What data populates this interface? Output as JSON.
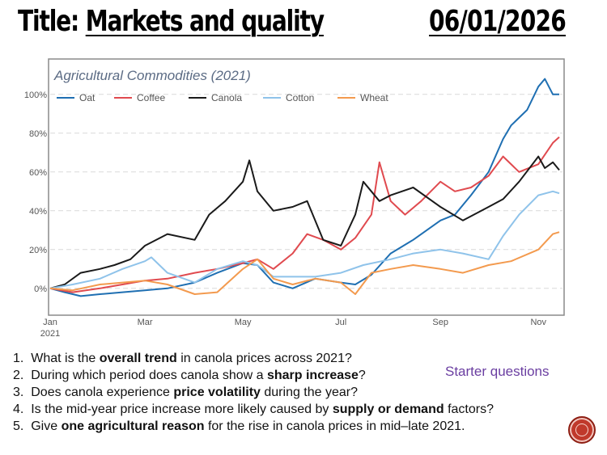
{
  "slide": {
    "title_prefix": "Title: ",
    "title_topic": "Markets and quality",
    "date": "06/01/2026"
  },
  "questions": [
    {
      "num": "1.",
      "parts": [
        {
          "t": "What is the ",
          "b": false
        },
        {
          "t": "overall trend",
          "b": true
        },
        {
          "t": " in canola prices across 2021?",
          "b": false
        }
      ]
    },
    {
      "num": "2.",
      "parts": [
        {
          "t": "During which period does canola show a ",
          "b": false
        },
        {
          "t": "sharp increase",
          "b": true
        },
        {
          "t": "?",
          "b": false
        }
      ]
    },
    {
      "num": "3.",
      "parts": [
        {
          "t": "Does canola experience ",
          "b": false
        },
        {
          "t": "price volatility",
          "b": true
        },
        {
          "t": " during the year?",
          "b": false
        }
      ]
    },
    {
      "num": "4.",
      "parts": [
        {
          "t": "Is the mid-year price increase more likely caused by ",
          "b": false
        },
        {
          "t": "supply or demand",
          "b": true
        },
        {
          "t": " factors?",
          "b": false
        }
      ]
    },
    {
      "num": "5.",
      "parts": [
        {
          "t": "Give ",
          "b": false
        },
        {
          "t": "one agricultural reason",
          "b": true
        },
        {
          "t": " for the rise in canola prices in mid–late 2021.",
          "b": false
        }
      ]
    }
  ],
  "starter_label": "Starter questions",
  "badge_icon": "circle-button-icon",
  "colors": {
    "title_text": "#5b6b84",
    "grid": "#d9d9d9",
    "frame": "#8a8a8a",
    "starter": "#6a3ea1",
    "badge": "#c0392b"
  },
  "chart_data": {
    "type": "line",
    "title": "Agricultural Commodities (2021)",
    "xlabel": "",
    "ylabel": "",
    "x_ticks": [
      {
        "x": "2021-01-01",
        "label": "Jan",
        "sublabel": "2021"
      },
      {
        "x": "2021-03-01",
        "label": "Mar"
      },
      {
        "x": "2021-05-01",
        "label": "May"
      },
      {
        "x": "2021-07-01",
        "label": "Jul"
      },
      {
        "x": "2021-09-01",
        "label": "Sep"
      },
      {
        "x": "2021-11-01",
        "label": "Nov"
      }
    ],
    "xlim": [
      "2021-01-01",
      "2021-11-16"
    ],
    "y_ticks": [
      0,
      20,
      40,
      60,
      80,
      100
    ],
    "y_tick_labels": [
      "0%",
      "20%",
      "40%",
      "60%",
      "80%",
      "100%"
    ],
    "ylim": [
      -13,
      117
    ],
    "grid": "horizontal dashed",
    "legend_position": "top-left",
    "series": [
      {
        "name": "Oat",
        "color": "#1f6fb2",
        "points": [
          [
            "2021-01-01",
            0
          ],
          [
            "2021-01-10",
            -2
          ],
          [
            "2021-01-20",
            -4
          ],
          [
            "2021-02-01",
            -3
          ],
          [
            "2021-02-15",
            -2
          ],
          [
            "2021-03-01",
            -1
          ],
          [
            "2021-03-15",
            0
          ],
          [
            "2021-04-01",
            3
          ],
          [
            "2021-04-15",
            8
          ],
          [
            "2021-05-01",
            13
          ],
          [
            "2021-05-10",
            12
          ],
          [
            "2021-05-20",
            3
          ],
          [
            "2021-06-01",
            0
          ],
          [
            "2021-06-15",
            5
          ],
          [
            "2021-07-01",
            3
          ],
          [
            "2021-07-10",
            2
          ],
          [
            "2021-07-20",
            7
          ],
          [
            "2021-08-01",
            18
          ],
          [
            "2021-08-15",
            25
          ],
          [
            "2021-09-01",
            35
          ],
          [
            "2021-09-10",
            38
          ],
          [
            "2021-09-20",
            48
          ],
          [
            "2021-10-01",
            60
          ],
          [
            "2021-10-10",
            77
          ],
          [
            "2021-10-15",
            84
          ],
          [
            "2021-10-25",
            92
          ],
          [
            "2021-11-01",
            104
          ],
          [
            "2021-11-05",
            108
          ],
          [
            "2021-11-10",
            100
          ],
          [
            "2021-11-14",
            100
          ]
        ]
      },
      {
        "name": "Coffee",
        "color": "#e04a4f",
        "points": [
          [
            "2021-01-01",
            0
          ],
          [
            "2021-01-15",
            -2
          ],
          [
            "2021-02-01",
            0
          ],
          [
            "2021-02-15",
            2
          ],
          [
            "2021-03-01",
            4
          ],
          [
            "2021-03-15",
            5
          ],
          [
            "2021-04-01",
            8
          ],
          [
            "2021-04-15",
            10
          ],
          [
            "2021-05-01",
            13
          ],
          [
            "2021-05-10",
            15
          ],
          [
            "2021-05-20",
            10
          ],
          [
            "2021-06-01",
            18
          ],
          [
            "2021-06-10",
            28
          ],
          [
            "2021-06-20",
            25
          ],
          [
            "2021-07-01",
            20
          ],
          [
            "2021-07-10",
            26
          ],
          [
            "2021-07-20",
            38
          ],
          [
            "2021-07-25",
            65
          ],
          [
            "2021-08-01",
            45
          ],
          [
            "2021-08-10",
            38
          ],
          [
            "2021-08-20",
            45
          ],
          [
            "2021-09-01",
            55
          ],
          [
            "2021-09-10",
            50
          ],
          [
            "2021-09-20",
            52
          ],
          [
            "2021-10-01",
            58
          ],
          [
            "2021-10-10",
            68
          ],
          [
            "2021-10-20",
            60
          ],
          [
            "2021-11-01",
            64
          ],
          [
            "2021-11-10",
            75
          ],
          [
            "2021-11-14",
            78
          ]
        ]
      },
      {
        "name": "Canola",
        "color": "#1a1a1a",
        "points": [
          [
            "2021-01-01",
            0
          ],
          [
            "2021-01-10",
            2
          ],
          [
            "2021-01-20",
            8
          ],
          [
            "2021-02-01",
            10
          ],
          [
            "2021-02-10",
            12
          ],
          [
            "2021-02-20",
            15
          ],
          [
            "2021-03-01",
            22
          ],
          [
            "2021-03-15",
            28
          ],
          [
            "2021-04-01",
            25
          ],
          [
            "2021-04-10",
            38
          ],
          [
            "2021-04-20",
            45
          ],
          [
            "2021-05-01",
            55
          ],
          [
            "2021-05-05",
            66
          ],
          [
            "2021-05-10",
            50
          ],
          [
            "2021-05-20",
            40
          ],
          [
            "2021-06-01",
            42
          ],
          [
            "2021-06-10",
            45
          ],
          [
            "2021-06-20",
            25
          ],
          [
            "2021-07-01",
            22
          ],
          [
            "2021-07-10",
            38
          ],
          [
            "2021-07-15",
            55
          ],
          [
            "2021-07-25",
            45
          ],
          [
            "2021-08-01",
            48
          ],
          [
            "2021-08-15",
            52
          ],
          [
            "2021-09-01",
            42
          ],
          [
            "2021-09-15",
            35
          ],
          [
            "2021-10-01",
            42
          ],
          [
            "2021-10-10",
            46
          ],
          [
            "2021-10-20",
            55
          ],
          [
            "2021-11-01",
            68
          ],
          [
            "2021-11-05",
            62
          ],
          [
            "2021-11-10",
            65
          ],
          [
            "2021-11-14",
            61
          ]
        ]
      },
      {
        "name": "Cotton",
        "color": "#8fc3ea",
        "points": [
          [
            "2021-01-01",
            0
          ],
          [
            "2021-01-15",
            2
          ],
          [
            "2021-02-01",
            5
          ],
          [
            "2021-02-15",
            10
          ],
          [
            "2021-03-01",
            14
          ],
          [
            "2021-03-05",
            16
          ],
          [
            "2021-03-15",
            8
          ],
          [
            "2021-04-01",
            3
          ],
          [
            "2021-04-15",
            10
          ],
          [
            "2021-05-01",
            14
          ],
          [
            "2021-05-10",
            12
          ],
          [
            "2021-05-20",
            6
          ],
          [
            "2021-06-01",
            6
          ],
          [
            "2021-06-15",
            6
          ],
          [
            "2021-07-01",
            8
          ],
          [
            "2021-07-15",
            12
          ],
          [
            "2021-08-01",
            15
          ],
          [
            "2021-08-15",
            18
          ],
          [
            "2021-09-01",
            20
          ],
          [
            "2021-09-15",
            18
          ],
          [
            "2021-10-01",
            15
          ],
          [
            "2021-10-10",
            27
          ],
          [
            "2021-10-20",
            38
          ],
          [
            "2021-11-01",
            48
          ],
          [
            "2021-11-10",
            50
          ],
          [
            "2021-11-14",
            49
          ]
        ]
      },
      {
        "name": "Wheat",
        "color": "#f39a4e",
        "points": [
          [
            "2021-01-01",
            0
          ],
          [
            "2021-01-15",
            -1
          ],
          [
            "2021-02-01",
            2
          ],
          [
            "2021-02-15",
            3
          ],
          [
            "2021-03-01",
            4
          ],
          [
            "2021-03-15",
            2
          ],
          [
            "2021-04-01",
            -3
          ],
          [
            "2021-04-15",
            -2
          ],
          [
            "2021-05-01",
            10
          ],
          [
            "2021-05-10",
            15
          ],
          [
            "2021-05-20",
            5
          ],
          [
            "2021-06-01",
            2
          ],
          [
            "2021-06-15",
            5
          ],
          [
            "2021-07-01",
            3
          ],
          [
            "2021-07-10",
            -3
          ],
          [
            "2021-07-20",
            8
          ],
          [
            "2021-08-01",
            10
          ],
          [
            "2021-08-15",
            12
          ],
          [
            "2021-09-01",
            10
          ],
          [
            "2021-09-15",
            8
          ],
          [
            "2021-10-01",
            12
          ],
          [
            "2021-10-15",
            14
          ],
          [
            "2021-11-01",
            20
          ],
          [
            "2021-11-10",
            28
          ],
          [
            "2021-11-14",
            29
          ]
        ]
      }
    ]
  }
}
